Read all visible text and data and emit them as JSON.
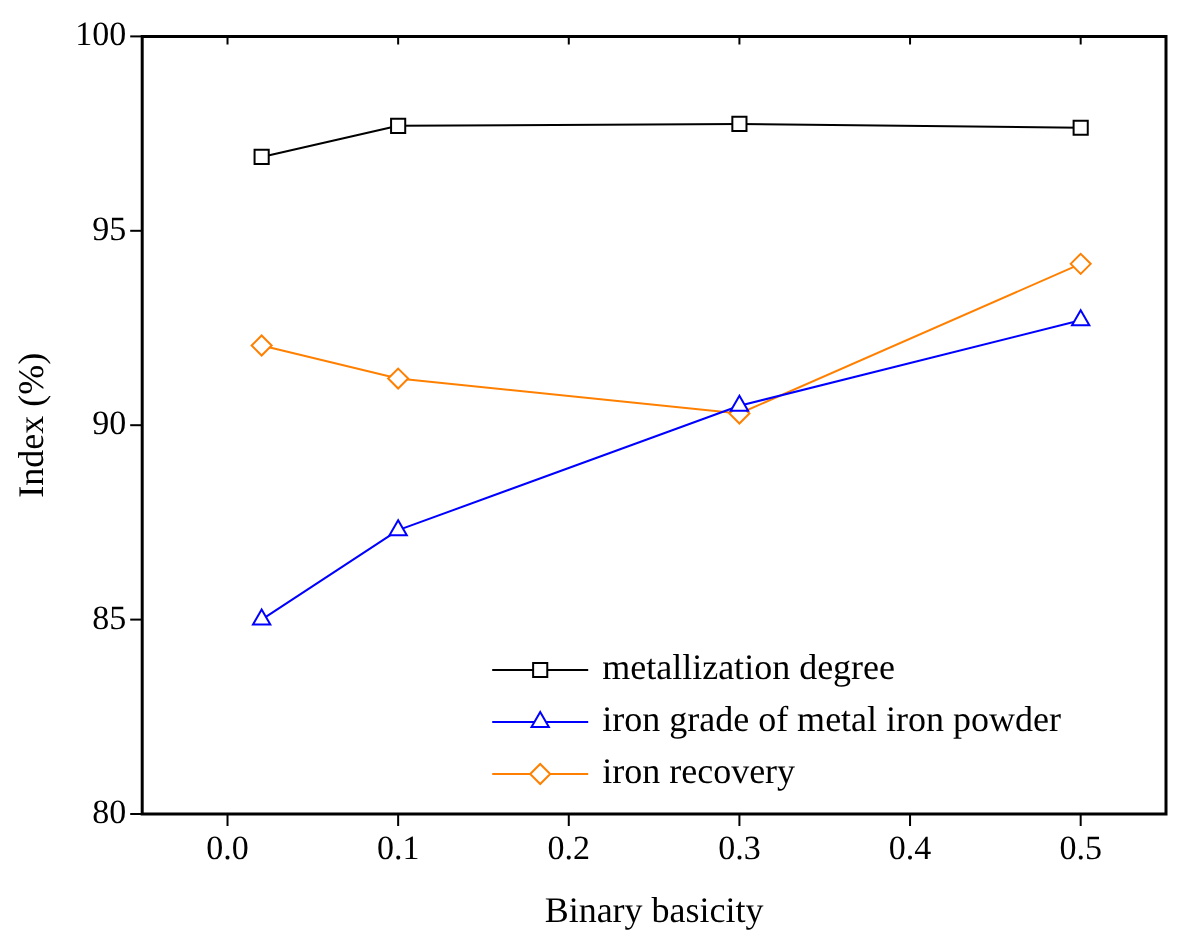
{
  "chart_data": {
    "type": "line",
    "xlabel": "Binary basicity",
    "ylabel": "Index (%)",
    "x": [
      0.02,
      0.1,
      0.3,
      0.5
    ],
    "series": [
      {
        "name": "metallization degree",
        "color": "#000000",
        "marker": "square",
        "values": [
          96.9,
          97.7,
          97.75,
          97.65
        ]
      },
      {
        "name": "iron grade of metal iron powder",
        "color": "#0000ff",
        "marker": "triangle",
        "values": [
          85.0,
          87.3,
          90.5,
          92.7
        ]
      },
      {
        "name": "iron recovery",
        "color": "#ff8000",
        "marker": "diamond",
        "values": [
          92.05,
          91.2,
          90.3,
          94.15
        ]
      }
    ],
    "xlim": [
      -0.05,
      0.55
    ],
    "xticks": [
      {
        "value": 0,
        "label": "0.0"
      },
      0.1,
      0.2,
      0.3,
      0.4,
      0.5
    ],
    "ylim": [
      80,
      100
    ],
    "yticks": [
      80,
      85,
      90,
      95,
      100
    ],
    "grid": false,
    "legend": "bottom right",
    "line_style": "solid"
  }
}
